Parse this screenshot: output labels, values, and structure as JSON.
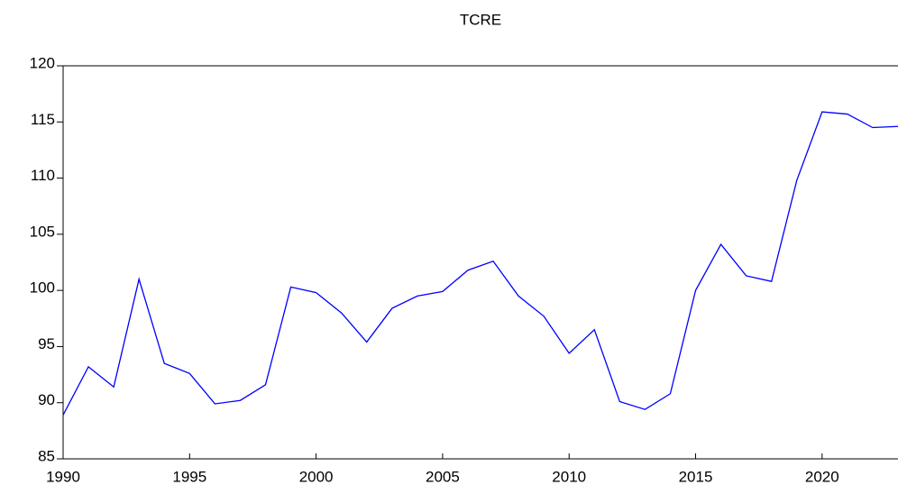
{
  "chart_data": {
    "type": "line",
    "title": "TCRE",
    "x": [
      1990,
      1991,
      1992,
      1993,
      1994,
      1995,
      1996,
      1997,
      1998,
      1999,
      2000,
      2001,
      2002,
      2003,
      2004,
      2005,
      2006,
      2007,
      2008,
      2009,
      2010,
      2011,
      2012,
      2013,
      2014,
      2015,
      2016,
      2017,
      2018,
      2019,
      2020,
      2021,
      2022,
      2023
    ],
    "series": [
      {
        "name": "TCRE",
        "color": "#0000ff",
        "values": [
          88.9,
          93.2,
          91.4,
          101,
          93.5,
          92.6,
          89.9,
          90.2,
          91.6,
          100.3,
          99.8,
          98,
          95.4,
          98.4,
          99.5,
          99.9,
          101.8,
          102.6,
          99.5,
          97.7,
          94.4,
          96.5,
          90.1,
          89.4,
          90.8,
          100,
          104.1,
          101.3,
          100.8,
          109.8,
          115.9,
          115.7,
          114.5,
          114.6
        ]
      }
    ],
    "xlim": [
      1990,
      2023
    ],
    "xticks": [
      1990,
      1995,
      2000,
      2005,
      2010,
      2015,
      2020
    ],
    "ylim": [
      85,
      120
    ],
    "yticks": [
      85,
      90,
      95,
      100,
      105,
      110,
      115,
      120
    ]
  }
}
